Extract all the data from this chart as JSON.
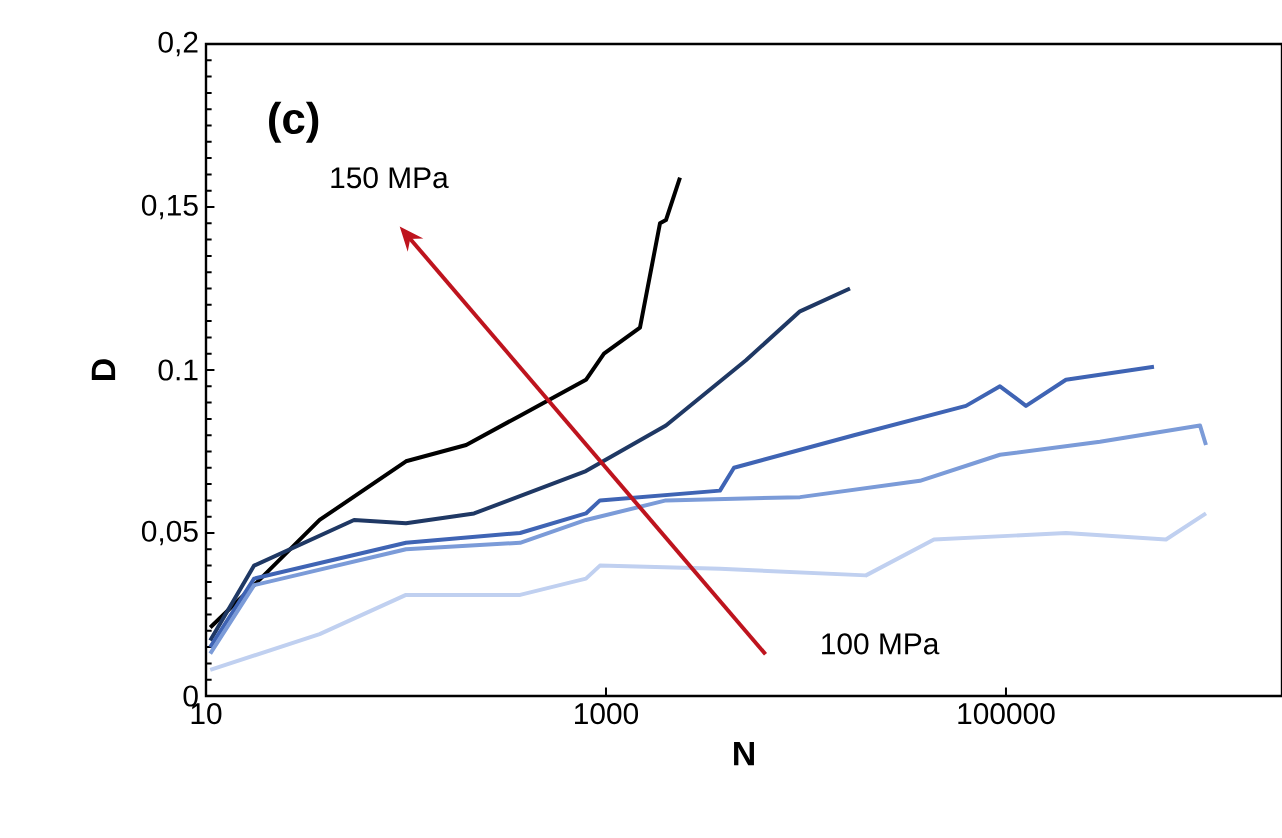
{
  "chart_data": {
    "type": "line",
    "xlabel": "N",
    "ylabel": "D",
    "log": "x",
    "xlim": [
      10,
      2400000
    ],
    "xticks": [
      10,
      1000,
      100000
    ],
    "ylim": [
      0,
      0.2
    ],
    "yticks": [
      0,
      {
        "value": 0.05,
        "label": "0,05"
      },
      {
        "value": 0.1,
        "label": "0.1"
      },
      {
        "value": 0.15,
        "label": "0,15"
      },
      {
        "value": 0.2,
        "label": "0,2"
      }
    ],
    "annotations": [
      "(c)",
      "150 MPa",
      "100 MPa"
    ],
    "series": [
      {
        "color": "#000000",
        "x": [
          10.5,
          17.4,
          37,
          100,
          200,
          372,
          794,
          977,
          1479,
          1862,
          1995,
          2344
        ],
        "values": [
          0.021,
          0.034,
          0.054,
          0.072,
          0.077,
          0.086,
          0.097,
          0.105,
          0.113,
          0.145,
          0.146,
          0.159
        ]
      },
      {
        "color": "#1f3864",
        "x": [
          10.5,
          17.4,
          55,
          100,
          219,
          794,
          1995,
          5012,
          9333,
          16596
        ],
        "values": [
          0.017,
          0.04,
          0.054,
          0.053,
          0.056,
          0.069,
          0.083,
          0.103,
          0.118,
          0.125
        ]
      },
      {
        "color": "#3f64b4",
        "x": [
          10.5,
          17.4,
          100,
          372,
          794,
          933,
          3715,
          4365,
          17378,
          63096,
          93325,
          125893,
          199526,
          549541
        ],
        "values": [
          0.015,
          0.036,
          0.047,
          0.05,
          0.056,
          0.06,
          0.063,
          0.07,
          0.08,
          0.089,
          0.095,
          0.089,
          0.097,
          0.101
        ]
      },
      {
        "color": "#7b9bd8",
        "x": [
          10.5,
          17.4,
          100,
          372,
          794,
          1995,
          9333,
          37154,
          93325,
          295121,
          933254,
          1000000
        ],
        "values": [
          0.013,
          0.034,
          0.045,
          0.047,
          0.054,
          0.06,
          0.061,
          0.066,
          0.074,
          0.078,
          0.083,
          0.077
        ]
      },
      {
        "color": "#c0d0f0",
        "x": [
          10.5,
          37,
          100,
          372,
          794,
          933,
          3715,
          19953,
          43652,
          199526,
          630957,
          1000000
        ],
        "values": [
          0.008,
          0.019,
          0.031,
          0.031,
          0.036,
          0.04,
          0.039,
          0.037,
          0.048,
          0.05,
          0.048,
          0.056
        ]
      }
    ]
  }
}
